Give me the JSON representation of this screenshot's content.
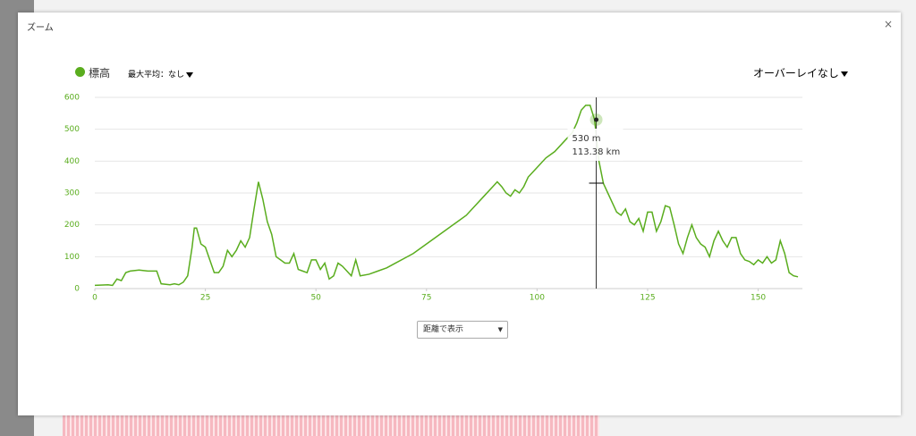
{
  "dialog": {
    "title": "ズーム",
    "close": "×"
  },
  "controls": {
    "smoothing": "最大平均：なし",
    "overlay": "オーバーレイなし",
    "x_mode": "距離で表示"
  },
  "chart_data": {
    "type": "line",
    "x": [
      0,
      3,
      4,
      5,
      6,
      7,
      8,
      10,
      12,
      14,
      15,
      17,
      18,
      19,
      20,
      21,
      22,
      22.5,
      23,
      24,
      25,
      26,
      27,
      28,
      29,
      30,
      31,
      32,
      33,
      34,
      35,
      36,
      37,
      38,
      39,
      40,
      41,
      42,
      43,
      44,
      45,
      46,
      47,
      48,
      49,
      50,
      51,
      52,
      53,
      54,
      55,
      56,
      57,
      58,
      59,
      60,
      62,
      64,
      66,
      68,
      70,
      72,
      74,
      76,
      78,
      80,
      82,
      84,
      86,
      88,
      90,
      91,
      92,
      93,
      94,
      95,
      96,
      97,
      98,
      100,
      102,
      104,
      106,
      108,
      109,
      110,
      111,
      112,
      113,
      114,
      115,
      116,
      117,
      118,
      119,
      120,
      121,
      122,
      123,
      124,
      125,
      126,
      127,
      128,
      129,
      130,
      131,
      132,
      133,
      134,
      135,
      136,
      137,
      138,
      139,
      140,
      141,
      142,
      143,
      144,
      145,
      146,
      147,
      148,
      149,
      150,
      151,
      152,
      153,
      154,
      155,
      156,
      157,
      158,
      159
    ],
    "series": [
      {
        "name": "標高",
        "color": "#5aad1e",
        "values": [
          10,
          12,
          10,
          30,
          25,
          50,
          55,
          58,
          55,
          55,
          15,
          12,
          15,
          12,
          20,
          40,
          130,
          190,
          190,
          140,
          130,
          90,
          50,
          50,
          70,
          120,
          100,
          120,
          150,
          130,
          160,
          250,
          335,
          280,
          210,
          170,
          100,
          90,
          80,
          80,
          110,
          60,
          55,
          50,
          90,
          90,
          60,
          80,
          30,
          40,
          80,
          70,
          55,
          40,
          90,
          40,
          45,
          55,
          65,
          80,
          95,
          110,
          130,
          150,
          170,
          190,
          210,
          230,
          260,
          290,
          320,
          335,
          320,
          300,
          290,
          310,
          300,
          320,
          350,
          380,
          410,
          430,
          460,
          490,
          520,
          560,
          575,
          575,
          530,
          400,
          330,
          300,
          270,
          240,
          230,
          250,
          210,
          200,
          220,
          180,
          240,
          240,
          180,
          210,
          260,
          255,
          200,
          140,
          110,
          160,
          200,
          160,
          140,
          130,
          100,
          150,
          180,
          150,
          130,
          160,
          160,
          110,
          90,
          85,
          75,
          90,
          80,
          100,
          80,
          90,
          150,
          110,
          50,
          40,
          37
        ]
      }
    ],
    "xlim": [
      0,
      160
    ],
    "xticks": [
      0,
      25,
      50,
      75,
      100,
      125,
      150
    ],
    "ylim": [
      0,
      600
    ],
    "yticks": [
      0,
      100,
      200,
      300,
      400,
      500,
      600
    ],
    "grid": true,
    "tooltip": {
      "x": 113.38,
      "y": 530,
      "labels": [
        "530 m",
        "113.38 km"
      ]
    }
  }
}
